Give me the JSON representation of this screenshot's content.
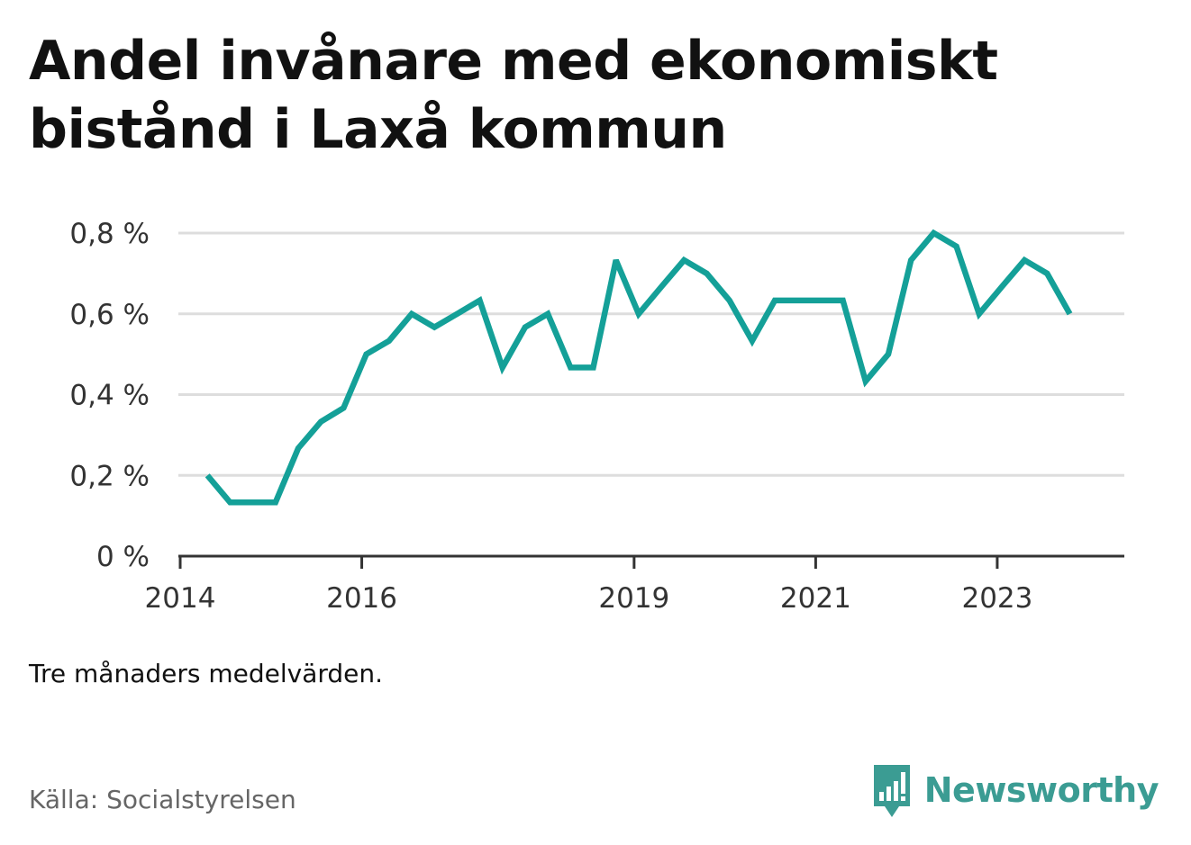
{
  "title_lines": [
    "Andel invånare med ekonomiskt",
    "bistånd i Laxå kommun"
  ],
  "note": "Tre månaders medelvärden.",
  "source": "Källa: Socialstyrelsen",
  "brand": {
    "name": "Newsworthy",
    "icon": "bar-chart-speech-bubble-icon",
    "color": "#3b9c93"
  },
  "colors": {
    "line": "#14a098",
    "grid": "#dddddd",
    "axis": "#333333"
  },
  "chart_data": {
    "type": "line",
    "title": "Andel invånare med ekonomiskt bistånd i Laxå kommun",
    "xlabel": "",
    "ylabel": "",
    "ylim": [
      0,
      0.8
    ],
    "y_ticks": [
      0,
      0.2,
      0.4,
      0.6,
      0.8
    ],
    "y_tick_labels": [
      "0 %",
      "0,2 %",
      "0,4 %",
      "0,6 %",
      "0,8 %"
    ],
    "x_ticks": [
      2014,
      2016,
      2019,
      2021,
      2023
    ],
    "x_tick_labels": [
      "2014",
      "2016",
      "2019",
      "2021",
      "2023"
    ],
    "grid": true,
    "series": [
      {
        "x": [
          2014.3,
          2014.55,
          2014.8,
          2015.05,
          2015.3,
          2015.55,
          2015.8,
          2016.05,
          2016.3,
          2016.55,
          2016.8,
          2017.05,
          2017.3,
          2017.55,
          2017.8,
          2018.05,
          2018.3,
          2018.55,
          2018.8,
          2019.05,
          2019.3,
          2019.55,
          2019.8,
          2020.05,
          2020.3,
          2020.55,
          2020.8,
          2021.05,
          2021.3,
          2021.55,
          2021.8,
          2022.05,
          2022.3,
          2022.55,
          2022.8,
          2023.05,
          2023.3,
          2023.55,
          2023.8
        ],
        "values": [
          0.2,
          0.133,
          0.133,
          0.133,
          0.267,
          0.333,
          0.367,
          0.5,
          0.533,
          0.6,
          0.567,
          0.6,
          0.633,
          0.467,
          0.567,
          0.6,
          0.467,
          0.467,
          0.733,
          0.6,
          0.667,
          0.733,
          0.7,
          0.633,
          0.533,
          0.633,
          0.633,
          0.633,
          0.633,
          0.433,
          0.5,
          0.733,
          0.8,
          0.767,
          0.6,
          0.667,
          0.733,
          0.7,
          0.6
        ]
      }
    ]
  }
}
